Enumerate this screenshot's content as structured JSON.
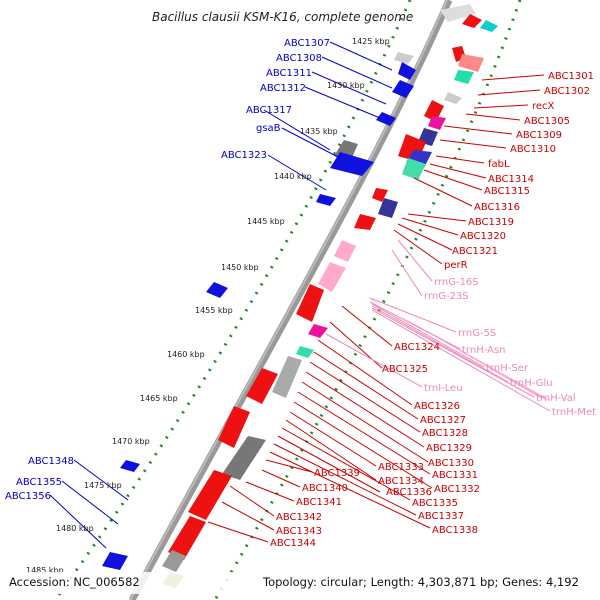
{
  "title": "Bacillus clausii KSM-K16, complete genome",
  "accession": "Accession: NC_006582",
  "summary": "Topology: circular; Length: 4,303,871 bp; Genes: 4,192",
  "kbp_labels": [
    "1425 kbp",
    "1430 kbp",
    "1435 kbp",
    "1440 kbp",
    "1445 kbp",
    "1450 kbp",
    "1455 kbp",
    "1460 kbp",
    "1465 kbp",
    "1470 kbp",
    "1475 kbp",
    "1480 kbp",
    "1485 kbp"
  ],
  "left_genes": [
    "ABC1307",
    "ABC1308",
    "ABC1311",
    "ABC1312",
    "ABC1317",
    "gsaB",
    "ABC1323",
    "ABC1348",
    "ABC1355",
    "ABC1356"
  ],
  "right_genes": [
    "ABC1301",
    "ABC1302",
    "recX",
    "ABC1305",
    "ABC1309",
    "ABC1310",
    "fabL",
    "ABC1314",
    "ABC1315",
    "ABC1316",
    "ABC1319",
    "ABC1320",
    "ABC1321",
    "perR",
    "ABC1324",
    "ABC1325",
    "ABC1326",
    "ABC1327",
    "ABC1328",
    "ABC1329",
    "ABC1330",
    "ABC1331",
    "ABC1332",
    "ABC1333",
    "ABC1334",
    "ABC1335",
    "ABC1336",
    "ABC1337",
    "ABC1338",
    "ABC1339",
    "ABC1340",
    "ABC1341",
    "ABC1342",
    "ABC1343",
    "ABC1344"
  ],
  "rna_genes": [
    "rrnG-16S",
    "rrnG-23S",
    "rrnG-5S",
    "trnH-Asn",
    "trnH-Ser",
    "trnH-Glu",
    "trnH-Val",
    "trnH-Met",
    "trnI-Leu"
  ],
  "colors": {
    "forward_cds": "#ee1111",
    "reverse_cds": "#1111dd",
    "rna": "#ffaacc",
    "backbone": "#888888",
    "tick": "#228822"
  }
}
